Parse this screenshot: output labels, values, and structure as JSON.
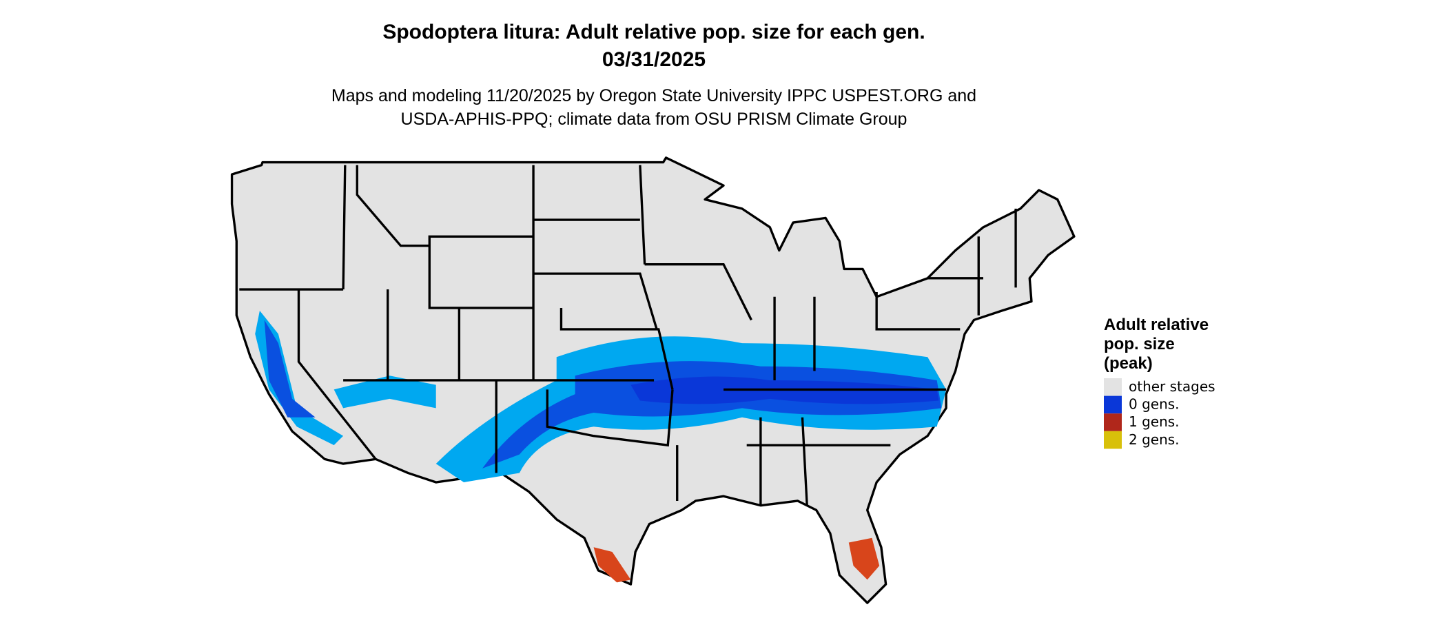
{
  "title": [
    "Spodoptera litura: Adult relative pop. size for each gen.",
    "03/31/2025"
  ],
  "subtitle": [
    "Maps and modeling 11/20/2025 by Oregon State University IPPC USPEST.ORG and",
    "USDA-APHIS-PPQ; climate data from OSU PRISM Climate Group"
  ],
  "legend": {
    "title": [
      "Adult relative",
      "pop. size",
      "(peak)"
    ],
    "items": [
      {
        "label": "other stages",
        "color": "#e3e3e3"
      },
      {
        "label": "0 gens.",
        "color": "#0a37d8"
      },
      {
        "label": "1 gens.",
        "color": "#b0271b"
      },
      {
        "label": "2 gens.",
        "color": "#d8c00a"
      }
    ]
  }
}
